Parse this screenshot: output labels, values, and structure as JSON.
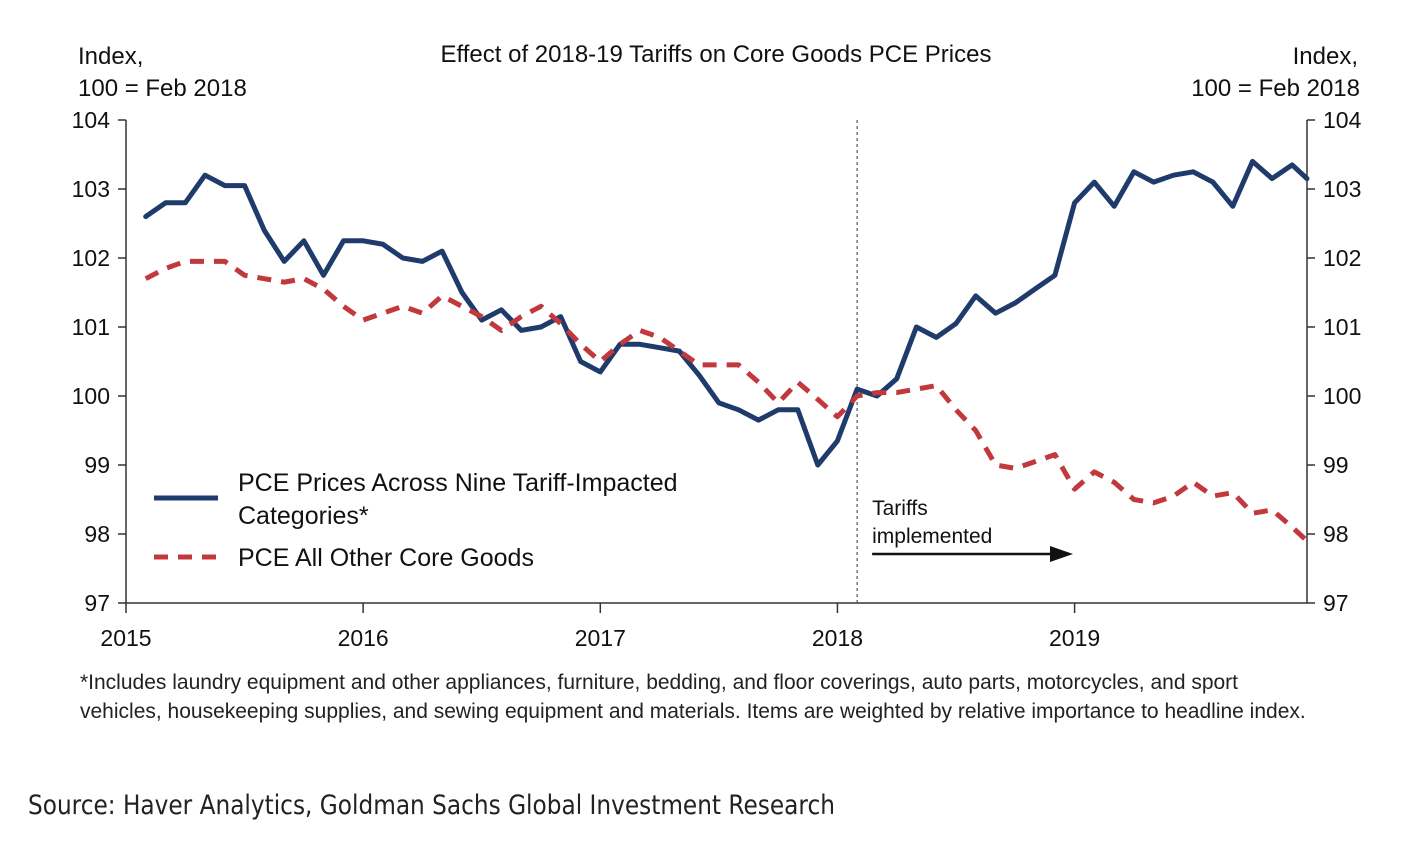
{
  "chart_data": {
    "type": "line",
    "title": "Effect of 2018-19 Tariffs on Core Goods PCE Prices",
    "ylabel_left": [
      "Index,",
      "100 = Feb 2018"
    ],
    "ylabel_right": [
      "Index,",
      "100 = Feb 2018"
    ],
    "ylim": [
      97,
      104
    ],
    "yticks": [
      "97",
      "98",
      "99",
      "100",
      "101",
      "102",
      "103",
      "104"
    ],
    "xlim": [
      2015,
      2019.98
    ],
    "xticks": [
      "2015",
      "2016",
      "2017",
      "2018",
      "2019"
    ],
    "x": [
      2015.083,
      2015.167,
      2015.25,
      2015.333,
      2015.417,
      2015.5,
      2015.583,
      2015.667,
      2015.75,
      2015.833,
      2015.917,
      2016.0,
      2016.083,
      2016.167,
      2016.25,
      2016.333,
      2016.417,
      2016.5,
      2016.583,
      2016.667,
      2016.75,
      2016.833,
      2016.917,
      2017.0,
      2017.083,
      2017.167,
      2017.25,
      2017.333,
      2017.417,
      2017.5,
      2017.583,
      2017.667,
      2017.75,
      2017.833,
      2017.917,
      2018.0,
      2018.083,
      2018.167,
      2018.25,
      2018.333,
      2018.417,
      2018.5,
      2018.583,
      2018.667,
      2018.75,
      2018.833,
      2018.917,
      2019.0,
      2019.083,
      2019.167,
      2019.25,
      2019.333,
      2019.417,
      2019.5,
      2019.583,
      2019.667,
      2019.75,
      2019.833,
      2019.917,
      2019.98
    ],
    "series": [
      {
        "name": "PCE Prices Across Nine Tariff-Impacted Categories*",
        "color": "#1f3b6b",
        "style": "solid",
        "values": [
          102.6,
          102.8,
          102.8,
          103.2,
          103.05,
          103.05,
          102.4,
          101.95,
          102.25,
          101.75,
          102.25,
          102.25,
          102.2,
          102.0,
          101.95,
          102.1,
          101.5,
          101.1,
          101.25,
          100.95,
          101.0,
          101.15,
          100.5,
          100.35,
          100.75,
          100.75,
          100.7,
          100.65,
          100.3,
          99.9,
          99.8,
          99.65,
          99.8,
          99.8,
          99.0,
          99.35,
          100.1,
          100.0,
          100.25,
          101.0,
          100.85,
          101.05,
          101.45,
          101.2,
          101.35,
          101.55,
          101.75,
          102.8,
          103.1,
          102.75,
          103.25,
          103.1,
          103.2,
          103.25,
          103.1,
          102.75,
          103.4,
          103.15,
          103.35,
          103.15
        ]
      },
      {
        "name": "PCE All Other Core Goods",
        "color": "#c1393d",
        "style": "dashed",
        "values": [
          101.7,
          101.85,
          101.95,
          101.95,
          101.95,
          101.75,
          101.7,
          101.65,
          101.7,
          101.55,
          101.3,
          101.1,
          101.2,
          101.3,
          101.2,
          101.45,
          101.3,
          101.15,
          100.95,
          101.15,
          101.3,
          101.05,
          100.75,
          100.5,
          100.75,
          100.95,
          100.85,
          100.65,
          100.45,
          100.45,
          100.45,
          100.2,
          99.9,
          100.2,
          99.95,
          99.7,
          100.0,
          100.05,
          100.05,
          100.1,
          100.15,
          99.8,
          99.5,
          99.0,
          98.95,
          99.05,
          99.15,
          98.65,
          98.9,
          98.75,
          98.5,
          98.45,
          98.55,
          98.75,
          98.55,
          98.6,
          98.3,
          98.35,
          98.1,
          97.9
        ]
      }
    ],
    "annotations": [
      {
        "text": [
          "Tariffs",
          "implemented"
        ],
        "x": 2018.083
      }
    ],
    "vline_x": 2018.083,
    "legend_position": "bottom-left"
  },
  "footnote": "*Includes laundry equipment and other appliances, furniture, bedding, and floor coverings, auto parts, motorcycles, and sport vehicles, housekeeping supplies, and sewing equipment and materials. Items are weighted by relative importance to headline index.",
  "source": "Source: Haver Analytics, Goldman Sachs Global Investment Research"
}
